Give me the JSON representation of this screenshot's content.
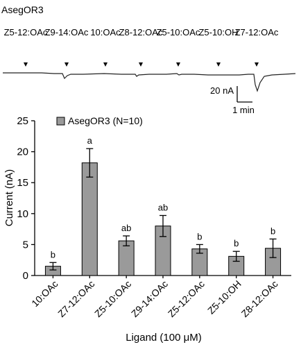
{
  "trace_panel": {
    "title": "AsegOR3",
    "ligand_markers": [
      "Z5-12:OAc",
      "Z9-14:OAc",
      "10:OAc",
      "Z8-12:OAc",
      "Z5-10:OAc",
      "Z5-10:OH",
      "Z7-12:OAc"
    ],
    "scale_bar": {
      "current_label": "20 nA",
      "time_label": "1 min"
    }
  },
  "chart_data": {
    "type": "bar",
    "title": "",
    "xlabel": "Ligand (100 μM)",
    "ylabel": "Current (nA)",
    "ylim": [
      0,
      25
    ],
    "yticks": [
      0,
      5,
      10,
      15,
      20,
      25
    ],
    "ytick_labels": [
      "0",
      "5",
      "10",
      "15",
      "20",
      "25"
    ],
    "categories": [
      "10:OAc",
      "Z7-12:OAc",
      "Z5-10:OAc",
      "Z9-14:OAc",
      "Z5-12:OAc",
      "Z5-10:OH",
      "Z8-12:OAc"
    ],
    "series": [
      {
        "name": "AsegOR3 (N=10)",
        "color": "#9a9a9a",
        "values": [
          1.5,
          18.2,
          5.6,
          8.0,
          4.3,
          3.1,
          4.4
        ],
        "errors": [
          0.6,
          2.3,
          0.8,
          1.7,
          0.7,
          0.8,
          1.5
        ],
        "significance": [
          "b",
          "a",
          "ab",
          "ab",
          "b",
          "b",
          "b"
        ]
      }
    ],
    "legend_position": "top-left",
    "grid": false
  }
}
